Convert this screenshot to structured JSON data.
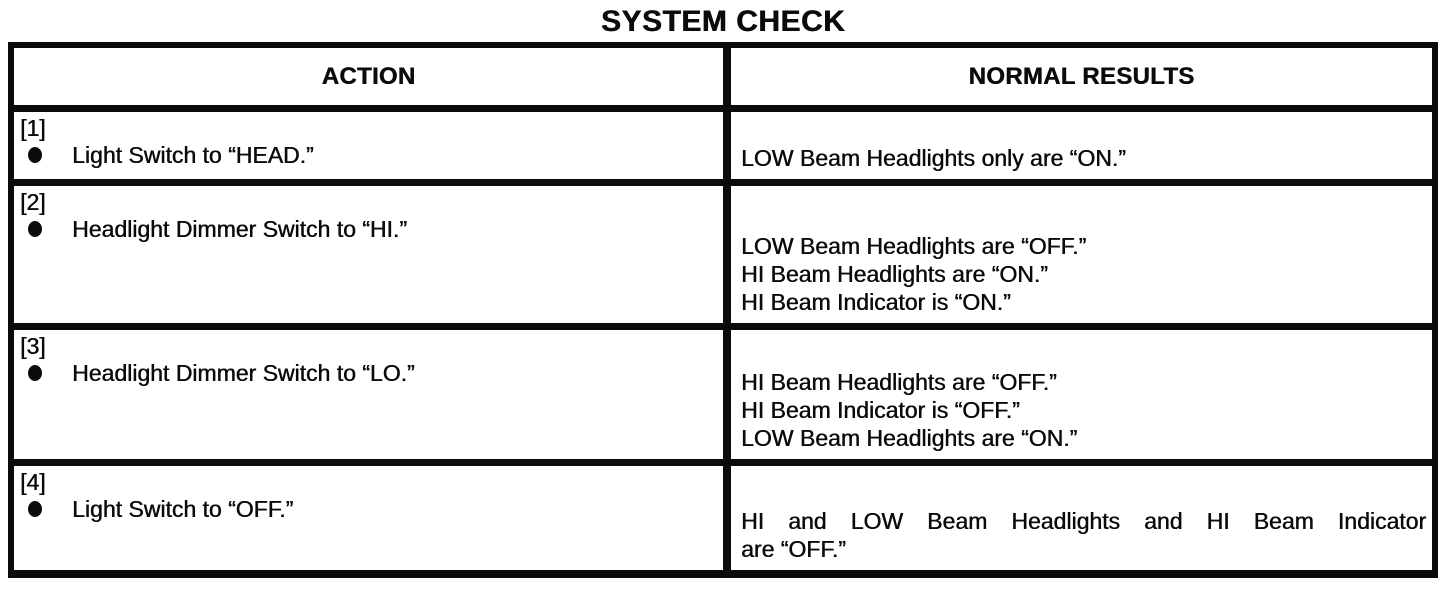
{
  "page": {
    "title": "SYSTEM CHECK"
  },
  "table": {
    "columns": [
      "ACTION",
      "NORMAL RESULTS"
    ],
    "rows": [
      {
        "step": "[1]",
        "action": "Light Switch to “HEAD.”",
        "results": [
          "LOW Beam Headlights only are “ON.”"
        ]
      },
      {
        "step": "[2]",
        "action": "Headlight Dimmer Switch to “HI.”",
        "results": [
          "LOW Beam Headlights are “OFF.”",
          "HI Beam Headlights are “ON.”",
          "HI Beam Indicator is “ON.”"
        ]
      },
      {
        "step": "[3]",
        "action": "Headlight Dimmer Switch to “LO.”",
        "results": [
          "HI Beam Headlights are “OFF.”",
          "HI Beam Indicator is “OFF.”",
          "LOW Beam Headlights are “ON.”"
        ]
      },
      {
        "step": "[4]",
        "action": "Light Switch to “OFF.”",
        "results": [
          "HI and LOW Beam Headlights and HI Beam Indicator",
          "are “OFF.”"
        ]
      }
    ]
  },
  "colors": {
    "ink": "#0b0b0b",
    "paper": "#ffffff"
  }
}
